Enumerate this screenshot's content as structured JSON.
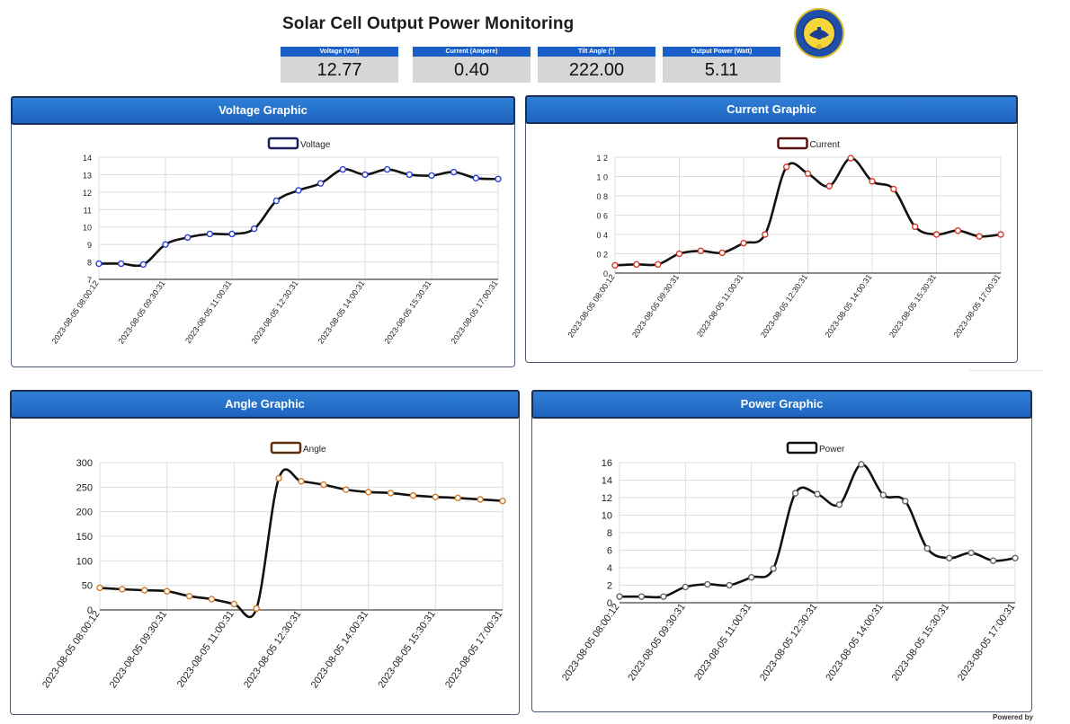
{
  "page": {
    "title": "Solar Cell Output Power Monitoring",
    "footer": "Powered by"
  },
  "logo": {
    "icon": "university-lampung-emblem-icon",
    "ring_text": "UNIVERSITAS LAMPUNG"
  },
  "metrics": [
    {
      "label": "Voltage (Volt)",
      "value": "12.77"
    },
    {
      "label": "Current (Ampere)",
      "value": "0.40"
    },
    {
      "label": "Tilt Angle (°)",
      "value": "222.00"
    },
    {
      "label": "Output Power (Watt)",
      "value": "5.11"
    }
  ],
  "colors": {
    "header_blue": "#1e64bf",
    "metric_bg": "#d6d6d6",
    "line": "#111111"
  },
  "chart_data": [
    {
      "id": "voltage",
      "type": "line",
      "title": "Voltage Graphic",
      "legend": "Voltage",
      "legend_position": "top-center",
      "point_color": "#2b3fd0",
      "legend_color": "#1a1f5a",
      "ylim": [
        7,
        14
      ],
      "yticks": [
        "7",
        "8",
        "9",
        "10",
        "11",
        "12",
        "13",
        "14"
      ],
      "grid": true,
      "x": [
        "2023-08-05 08:00:12",
        "2023-08-05 08:30",
        "2023-08-05 09:00",
        "2023-08-05 09:30:31",
        "2023-08-05 10:00",
        "2023-08-05 10:30",
        "2023-08-05 11:00:31",
        "2023-08-05 11:30",
        "2023-08-05 12:00",
        "2023-08-05 12:30:31",
        "2023-08-05 13:00",
        "2023-08-05 13:30",
        "2023-08-05 14:00:31",
        "2023-08-05 14:30",
        "2023-08-05 15:00",
        "2023-08-05 15:30:31",
        "2023-08-05 16:00",
        "2023-08-05 16:30",
        "2023-08-05 17:00:31"
      ],
      "xticks": [
        "2023-08-05 08:00:12",
        "2023-08-05 09:30:31",
        "2023-08-05 11:00:31",
        "2023-08-05 12:30:31",
        "2023-08-05 14:00:31",
        "2023-08-05 15:30:31",
        "2023-08-05 17:00:31"
      ],
      "values": [
        7.9,
        7.9,
        7.85,
        9.0,
        9.4,
        9.6,
        9.6,
        9.9,
        11.5,
        12.1,
        12.5,
        13.3,
        13.0,
        13.3,
        13.0,
        12.95,
        13.15,
        12.8,
        12.75
      ]
    },
    {
      "id": "current",
      "type": "line",
      "title": "Current Graphic",
      "legend": "Current",
      "legend_position": "top-center",
      "point_color": "#d23a2a",
      "legend_color": "#5a1010",
      "ylim": [
        0,
        1.2
      ],
      "yticks": [
        "0",
        "0 2",
        "0 4",
        "0 6",
        "0 8",
        "1 0",
        "1 2"
      ],
      "grid": true,
      "x": [
        "2023-08-05 08:00:12",
        "2023-08-05 08:30",
        "2023-08-05 09:00",
        "2023-08-05 09:30:31",
        "2023-08-05 10:00",
        "2023-08-05 10:30",
        "2023-08-05 11:00:31",
        "2023-08-05 11:30",
        "2023-08-05 12:00",
        "2023-08-05 12:30:31",
        "2023-08-05 13:00",
        "2023-08-05 13:30",
        "2023-08-05 14:00:31",
        "2023-08-05 14:30",
        "2023-08-05 15:00",
        "2023-08-05 15:30:31",
        "2023-08-05 16:00",
        "2023-08-05 16:30",
        "2023-08-05 17:00:31"
      ],
      "xticks": [
        "2023-08-05 08:00:12",
        "2023-08-05 09:30:31",
        "2023-08-05 11:00:31",
        "2023-08-05 12:30:31",
        "2023-08-05 14:00:31",
        "2023-08-05 15:30:31",
        "2023-08-05 17:00:31"
      ],
      "values": [
        0.08,
        0.09,
        0.09,
        0.2,
        0.23,
        0.21,
        0.31,
        0.4,
        1.1,
        1.03,
        0.9,
        1.19,
        0.95,
        0.87,
        0.48,
        0.4,
        0.44,
        0.38,
        0.4
      ]
    },
    {
      "id": "angle",
      "type": "line",
      "title": "Angle Graphic",
      "legend": "Angle",
      "legend_position": "top-center",
      "point_color": "#d07a2a",
      "legend_color": "#5a3010",
      "ylim": [
        0,
        300
      ],
      "yticks": [
        "0",
        "50",
        "100",
        "150",
        "200",
        "250",
        "300"
      ],
      "grid": true,
      "x": [
        "2023-08-05 08:00:12",
        "2023-08-05 08:30",
        "2023-08-05 09:00",
        "2023-08-05 09:30:31",
        "2023-08-05 10:00",
        "2023-08-05 10:30",
        "2023-08-05 11:00:31",
        "2023-08-05 11:30",
        "2023-08-05 12:00",
        "2023-08-05 12:30:31",
        "2023-08-05 13:00",
        "2023-08-05 13:30",
        "2023-08-05 14:00:31",
        "2023-08-05 14:30",
        "2023-08-05 15:00",
        "2023-08-05 15:30:31",
        "2023-08-05 16:00",
        "2023-08-05 16:30",
        "2023-08-05 17:00:31"
      ],
      "xticks": [
        "2023-08-05 08:00:12",
        "2023-08-05 09:30:31",
        "2023-08-05 11:00:31",
        "2023-08-05 12:30:31",
        "2023-08-05 14:00:31",
        "2023-08-05 15:30:31",
        "2023-08-05 17:00:31"
      ],
      "values": [
        45,
        42,
        40,
        38,
        28,
        22,
        12,
        3,
        268,
        262,
        255,
        245,
        240,
        238,
        233,
        230,
        228,
        225,
        222
      ]
    },
    {
      "id": "power",
      "type": "line",
      "title": "Power Graphic",
      "legend": "Power",
      "legend_position": "top-center",
      "point_color": "#666666",
      "legend_color": "#111111",
      "ylim": [
        0,
        16
      ],
      "yticks": [
        "0",
        "2",
        "4",
        "6",
        "8",
        "10",
        "12",
        "14",
        "16"
      ],
      "grid": true,
      "x": [
        "2023-08-05 08:00:12",
        "2023-08-05 08:30",
        "2023-08-05 09:00",
        "2023-08-05 09:30:31",
        "2023-08-05 10:00",
        "2023-08-05 10:30",
        "2023-08-05 11:00:31",
        "2023-08-05 11:30",
        "2023-08-05 12:00",
        "2023-08-05 12:30:31",
        "2023-08-05 13:00",
        "2023-08-05 13:30",
        "2023-08-05 14:00:31",
        "2023-08-05 14:30",
        "2023-08-05 15:00",
        "2023-08-05 15:30:31",
        "2023-08-05 16:00",
        "2023-08-05 16:30",
        "2023-08-05 17:00:31"
      ],
      "xticks": [
        "2023-08-05 08:00:12",
        "2023-08-05 09:30:31",
        "2023-08-05 11:00:31",
        "2023-08-05 12:30:31",
        "2023-08-05 14:00:31",
        "2023-08-05 15:30:31",
        "2023-08-05 17:00:31"
      ],
      "values": [
        0.7,
        0.7,
        0.7,
        1.8,
        2.1,
        2.0,
        2.9,
        3.9,
        12.5,
        12.4,
        11.2,
        15.8,
        12.3,
        11.6,
        6.2,
        5.1,
        5.7,
        4.8,
        5.1
      ]
    }
  ]
}
